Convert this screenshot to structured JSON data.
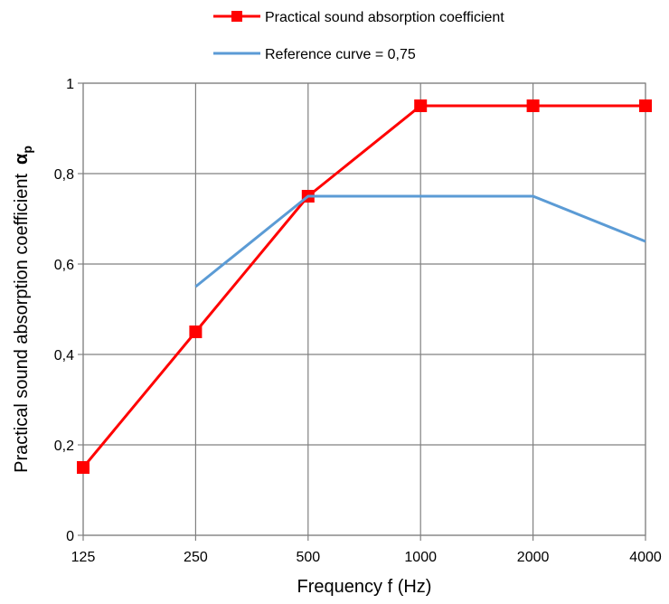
{
  "chart_data": {
    "type": "line",
    "title": "",
    "x_categories": [
      "125",
      "250",
      "500",
      "1000",
      "2000",
      "4000"
    ],
    "xlabel": "Frequency f (Hz)",
    "ylabel": "Practical sound absorption coefficient",
    "ylabel_symbol": "α",
    "ylabel_subscript": "p",
    "y_ticks": [
      "0",
      "0,2",
      "0,4",
      "0,6",
      "0,8",
      "1"
    ],
    "ylim": [
      0,
      1
    ],
    "grid": true,
    "legend_position": "top",
    "series": [
      {
        "name": "Practical sound absorption coefficient",
        "color": "#ff0000",
        "marker": "square",
        "values": [
          0.15,
          0.45,
          0.75,
          0.95,
          0.95,
          0.95
        ]
      },
      {
        "name": "Reference curve = 0,75",
        "color": "#5b9bd5",
        "marker": "none",
        "values": [
          null,
          0.55,
          0.75,
          0.75,
          0.75,
          0.65
        ]
      }
    ]
  }
}
